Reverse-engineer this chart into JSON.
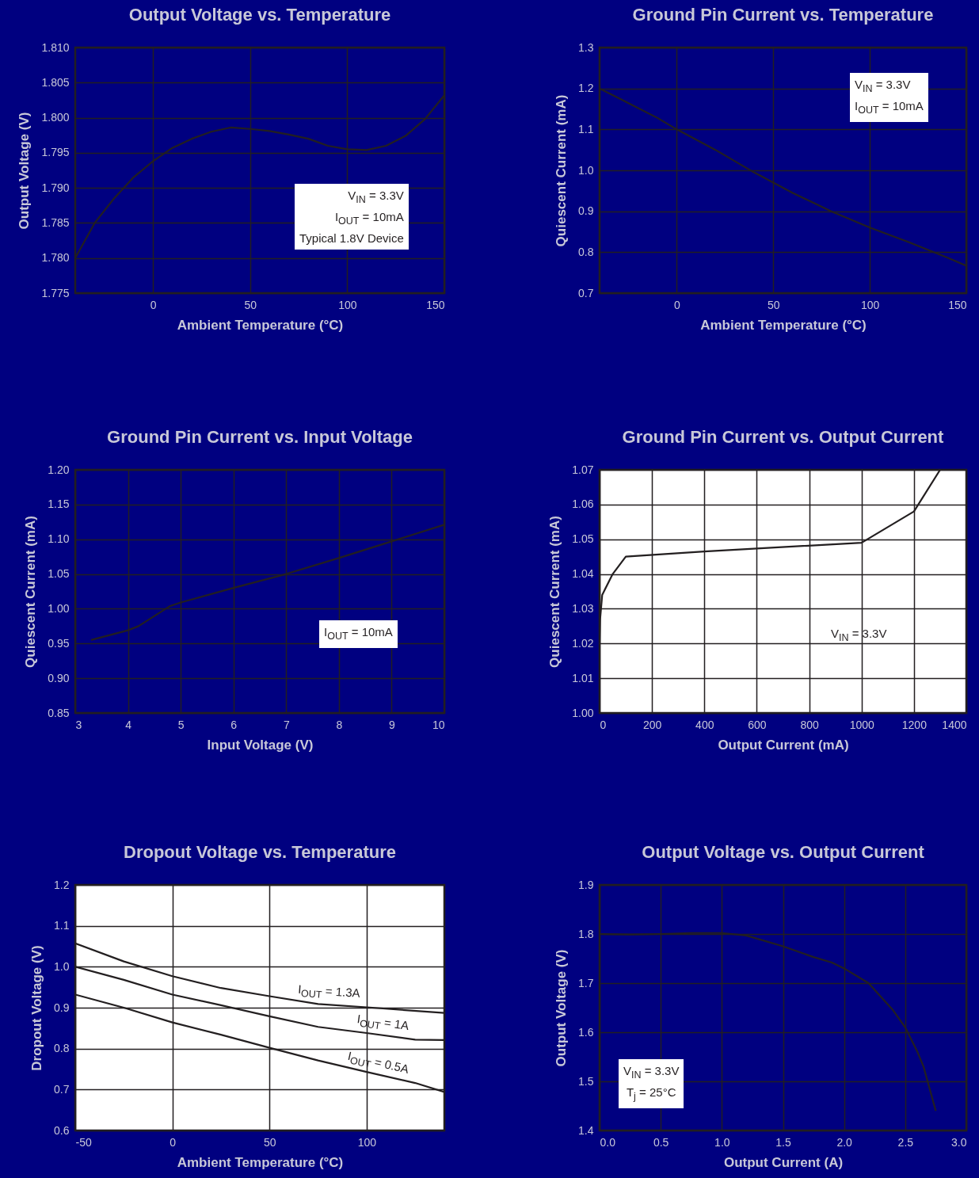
{
  "chart_data": [
    {
      "type": "line",
      "title": "Output Voltage vs. Temperature",
      "xlabel": "Ambient Temperature (°C)",
      "ylabel": "Output Voltage (V)",
      "x": [
        -40,
        -30,
        -20,
        -10,
        0,
        10,
        20,
        30,
        40,
        50,
        60,
        70,
        80,
        90,
        100,
        110,
        120,
        130,
        140,
        150
      ],
      "values": [
        1.78,
        1.785,
        1.7885,
        1.7915,
        1.7938,
        1.7957,
        1.797,
        1.798,
        1.7986,
        1.7984,
        1.7981,
        1.7976,
        1.797,
        1.796,
        1.7955,
        1.7954,
        1.796,
        1.7974,
        1.7998,
        1.8032
      ],
      "color": "#231f20",
      "xlim": [
        -40,
        150
      ],
      "xticks": [
        0,
        50,
        100,
        150
      ],
      "ylim": [
        1.775,
        1.81
      ],
      "yticks": [
        1.775,
        {
          "value": 1.78,
          "label": "1.780"
        },
        1.785,
        {
          "value": 1.79,
          "label": "1.790"
        },
        1.795,
        {
          "value": 1.8,
          "label": "1.800"
        },
        1.805,
        {
          "value": 1.81,
          "label": "1.810"
        }
      ],
      "grid": true,
      "annotations": [
        "V$_{IN}$ = 3.3V",
        "I$_{OUT}$ = 10mA",
        "Typical 1.8V Device"
      ]
    },
    {
      "type": "line",
      "title": "Ground Pin Current vs. Temperature",
      "xlabel": "Ambient Temperature (°C)",
      "ylabel": "Quiescent Current (mA)",
      "x": [
        -40,
        -30,
        -20,
        -10,
        0,
        20,
        40,
        60,
        80,
        100,
        120,
        140,
        150
      ],
      "values": [
        1.2,
        1.176,
        1.152,
        1.128,
        1.1,
        1.05,
        0.995,
        0.945,
        0.9,
        0.86,
        0.825,
        0.787,
        0.767
      ],
      "color": "#231f20",
      "xlim": [
        -40,
        150
      ],
      "xticks": [
        0,
        50,
        100,
        150
      ],
      "ylim": [
        0.7,
        1.3
      ],
      "yticks": [
        0.7,
        0.8,
        0.9,
        {
          "value": 1.0,
          "label": "1.0"
        },
        1.1,
        1.2,
        1.3
      ],
      "grid": true,
      "annotations": [
        "V$_{IN}$ = 3.3V",
        "I$_{OUT}$ = 10mA"
      ]
    },
    {
      "type": "line",
      "title": "Ground Pin Current vs. Input Voltage",
      "xlabel": "Input Voltage (V)",
      "ylabel": "Quiescent Current (mA)",
      "x": [
        3.3,
        4.0,
        4.2,
        4.8,
        5,
        6,
        7,
        8,
        9,
        10
      ],
      "values": [
        0.955,
        0.969,
        0.975,
        1.004,
        1.009,
        1.03,
        1.05,
        1.073,
        1.097,
        1.121
      ],
      "color": "#231f20",
      "xlim": [
        3,
        10
      ],
      "xticks": [
        3,
        4,
        5,
        6,
        7,
        8,
        9,
        10
      ],
      "ylim": [
        0.85,
        1.2
      ],
      "yticks": [
        0.85,
        {
          "value": 0.9,
          "label": "0.90"
        },
        0.95,
        {
          "value": 1.0,
          "label": "1.00"
        },
        1.05,
        {
          "value": 1.1,
          "label": "1.10"
        },
        1.15,
        {
          "value": 1.2,
          "label": "1.20"
        }
      ],
      "grid": true,
      "annotations": [
        "I$_{OUT}$ = 10mA"
      ]
    },
    {
      "type": "line",
      "title": "Ground Pin Current vs. Output Current",
      "xlabel": "Output Current (mA)",
      "ylabel": "Quiescent Current (mA)",
      "x": [
        0,
        2,
        10,
        50,
        100,
        400,
        1000,
        1200,
        1300
      ],
      "values": [
        1.02,
        1.027,
        1.034,
        1.04,
        1.045,
        1.0465,
        1.049,
        1.058,
        1.07
      ],
      "color": "#231f20",
      "xlim": [
        0,
        1400
      ],
      "xticks": [
        0,
        200,
        400,
        600,
        800,
        1000,
        1200,
        1400
      ],
      "ylim": [
        1.0,
        1.07
      ],
      "yticks": [
        {
          "value": 1.0,
          "label": "1.00"
        },
        1.01,
        1.02,
        1.03,
        1.04,
        1.05,
        1.06,
        1.07
      ],
      "grid": true,
      "annotations": [
        "V$_{IN}$ = 3.3V"
      ]
    },
    {
      "type": "line",
      "title": "Dropout Voltage vs. Temperature",
      "xlabel": "Ambient Temperature (°C)",
      "ylabel": "Dropout Voltage (V)",
      "series": [
        {
          "name": "I$_{OUT}$ = 1.3A",
          "color": "#231f20",
          "x": [
            -50,
            -25,
            0,
            25,
            50,
            75,
            100,
            140
          ],
          "values": [
            1.057,
            1.013,
            0.977,
            0.948,
            0.928,
            0.909,
            0.901,
            0.887
          ]
        },
        {
          "name": "I$_{OUT}$ = 1A",
          "color": "#231f20",
          "x": [
            -50,
            -25,
            0,
            25,
            50,
            75,
            100,
            125,
            140
          ],
          "values": [
            1.0,
            0.968,
            0.932,
            0.906,
            0.879,
            0.853,
            0.838,
            0.822,
            0.821
          ]
        },
        {
          "name": "I$_{OUT}$ = 0.5A",
          "color": "#231f20",
          "x": [
            -50,
            -25,
            0,
            25,
            50,
            75,
            100,
            125,
            140
          ],
          "values": [
            0.932,
            0.9,
            0.864,
            0.834,
            0.802,
            0.771,
            0.743,
            0.716,
            0.694
          ]
        }
      ],
      "xlim": [
        -50,
        140
      ],
      "xticks": [
        -50,
        0,
        50,
        100
      ],
      "ylim": [
        0.6,
        1.2
      ],
      "yticks": [
        0.6,
        0.7,
        0.8,
        0.9,
        {
          "value": 1.0,
          "label": "1.0"
        },
        1.1,
        1.2
      ],
      "grid": true
    },
    {
      "type": "line",
      "title": "Output Voltage vs. Output Current",
      "xlabel": "Output Current (A)",
      "ylabel": "Output Voltage (V)",
      "x": [
        0,
        0.25,
        0.5,
        0.75,
        1.0,
        1.2,
        1.5,
        1.75,
        1.9,
        2.0,
        2.2,
        2.4,
        2.5,
        2.6,
        2.65,
        2.75
      ],
      "values": [
        1.8,
        1.799,
        1.8,
        1.802,
        1.802,
        1.797,
        1.775,
        1.753,
        1.742,
        1.73,
        1.7,
        1.645,
        1.61,
        1.56,
        1.53,
        1.44
      ],
      "color": "#231f20",
      "xlim": [
        0,
        3
      ],
      "xticks": [
        {
          "value": 0,
          "label": "0.0"
        },
        0.5,
        {
          "value": 1,
          "label": "1.0"
        },
        1.5,
        {
          "value": 2,
          "label": "2.0"
        },
        2.5,
        {
          "value": 3,
          "label": "3.0"
        }
      ],
      "ylim": [
        1.4,
        1.9
      ],
      "yticks": [
        1.4,
        1.5,
        1.6,
        1.7,
        1.8,
        1.9
      ],
      "grid": true,
      "annotations": [
        "V$_{IN}$ = 3.3V",
        "T$_{j}$ = 25°C"
      ]
    }
  ]
}
